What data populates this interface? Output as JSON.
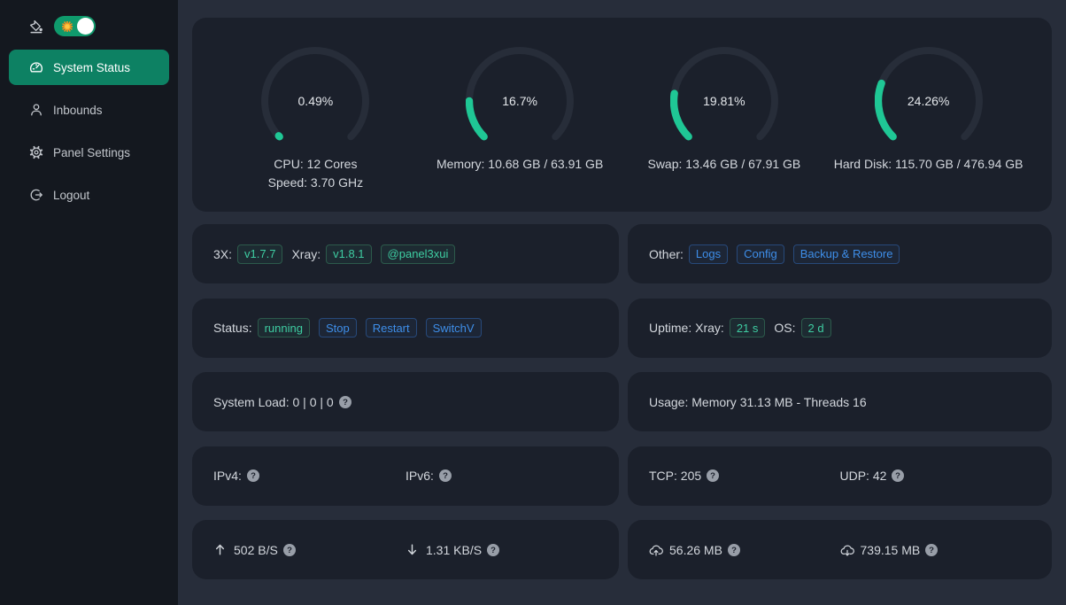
{
  "sidebar": {
    "theme_icon": "bg-colors-icon",
    "theme_switch": {
      "checked": true,
      "icon": "sun-icon"
    },
    "items": [
      {
        "id": "system-status",
        "label": "System Status",
        "icon": "dashboard-icon",
        "active": true
      },
      {
        "id": "inbounds",
        "label": "Inbounds",
        "icon": "user-icon",
        "active": false
      },
      {
        "id": "panel-settings",
        "label": "Panel Settings",
        "icon": "gear-icon",
        "active": false
      },
      {
        "id": "logout",
        "label": "Logout",
        "icon": "logout-icon",
        "active": false
      }
    ]
  },
  "colors": {
    "accent_green": "#0d8163",
    "gauge_green": "#1fc795",
    "tag_green": "#3ecda2",
    "tag_blue": "#3e8ee9"
  },
  "gauges": [
    {
      "id": "cpu",
      "percent": 0.49,
      "display": "0.49%",
      "lines": [
        "CPU: 12 Cores",
        "Speed: 3.70 GHz"
      ]
    },
    {
      "id": "memory",
      "percent": 16.7,
      "display": "16.7%",
      "lines": [
        "Memory: 10.68 GB / 63.91 GB"
      ]
    },
    {
      "id": "swap",
      "percent": 19.81,
      "display": "19.81%",
      "lines": [
        "Swap: 13.46 GB / 67.91 GB"
      ]
    },
    {
      "id": "hard-disk",
      "percent": 24.26,
      "display": "24.26%",
      "lines": [
        "Hard Disk: 115.70 GB / 476.94 GB"
      ]
    }
  ],
  "rows": [
    {
      "cards": [
        {
          "name": "panel-version-card",
          "columns": [
            {
              "segments": [
                {
                  "type": "text",
                  "text": "3X:",
                  "name": "panel-version-label",
                  "click": false
                },
                {
                  "type": "tag",
                  "variant": "green",
                  "text": "v1.7.7",
                  "name": "panel-version-tag",
                  "click": true
                },
                {
                  "type": "text",
                  "text": "Xray:",
                  "name": "xray-version-label",
                  "click": false
                },
                {
                  "type": "tag",
                  "variant": "green",
                  "text": "v1.8.1",
                  "name": "xray-version-tag",
                  "click": true
                },
                {
                  "type": "tag",
                  "variant": "green",
                  "text": "@panel3xui",
                  "name": "telegram-tag",
                  "click": true
                }
              ]
            }
          ]
        },
        {
          "name": "other-actions-card",
          "columns": [
            {
              "segments": [
                {
                  "type": "text",
                  "text": "Other:",
                  "name": "other-label",
                  "click": false
                },
                {
                  "type": "tag",
                  "variant": "blue",
                  "text": "Logs",
                  "name": "logs-button",
                  "click": true
                },
                {
                  "type": "tag",
                  "variant": "blue",
                  "text": "Config",
                  "name": "config-button",
                  "click": true
                },
                {
                  "type": "tag",
                  "variant": "blue",
                  "text": "Backup & Restore",
                  "name": "backup-restore-button",
                  "click": true
                }
              ]
            }
          ]
        }
      ]
    },
    {
      "cards": [
        {
          "name": "xray-status-card",
          "columns": [
            {
              "segments": [
                {
                  "type": "text",
                  "text": "Status:",
                  "name": "status-label",
                  "click": false
                },
                {
                  "type": "tag",
                  "variant": "green",
                  "text": "running",
                  "name": "status-running-tag",
                  "click": false
                },
                {
                  "type": "tag",
                  "variant": "blue",
                  "text": "Stop",
                  "name": "stop-button",
                  "click": true
                },
                {
                  "type": "tag",
                  "variant": "blue",
                  "text": "Restart",
                  "name": "restart-button",
                  "click": true
                },
                {
                  "type": "tag",
                  "variant": "blue",
                  "text": "SwitchV",
                  "name": "switch-version-button",
                  "click": true
                }
              ]
            }
          ]
        },
        {
          "name": "uptime-card",
          "columns": [
            {
              "segments": [
                {
                  "type": "text",
                  "text": "Uptime: Xray:",
                  "name": "uptime-xray-label",
                  "click": false
                },
                {
                  "type": "tag",
                  "variant": "green",
                  "text": "21 s",
                  "name": "xray-uptime-tag",
                  "click": false
                },
                {
                  "type": "text",
                  "text": "OS:",
                  "name": "os-uptime-label",
                  "click": false
                },
                {
                  "type": "tag",
                  "variant": "green",
                  "text": "2 d",
                  "name": "os-uptime-tag",
                  "click": false
                }
              ]
            }
          ]
        }
      ]
    },
    {
      "cards": [
        {
          "name": "system-load-card",
          "columns": [
            {
              "segments": [
                {
                  "type": "text",
                  "text": "System Load: 0 | 0 | 0",
                  "name": "system-load-value",
                  "click": false
                },
                {
                  "type": "help",
                  "name": "help-icon",
                  "click": true
                }
              ]
            }
          ]
        },
        {
          "name": "usage-card",
          "columns": [
            {
              "segments": [
                {
                  "type": "text",
                  "text": "Usage: Memory 31.13 MB - Threads 16",
                  "name": "usage-value",
                  "click": false
                }
              ]
            }
          ]
        }
      ]
    },
    {
      "cards": [
        {
          "name": "ip-card",
          "columns": [
            {
              "segments": [
                {
                  "type": "text",
                  "text": "IPv4:",
                  "name": "ipv4-label",
                  "click": false
                },
                {
                  "type": "help",
                  "name": "help-icon",
                  "click": true
                }
              ]
            },
            {
              "segments": [
                {
                  "type": "text",
                  "text": "IPv6:",
                  "name": "ipv6-label",
                  "click": false
                },
                {
                  "type": "help",
                  "name": "help-icon",
                  "click": true
                }
              ]
            }
          ]
        },
        {
          "name": "connections-card",
          "columns": [
            {
              "segments": [
                {
                  "type": "text",
                  "text": "TCP: 205",
                  "name": "tcp-count",
                  "click": false
                },
                {
                  "type": "help",
                  "name": "help-icon",
                  "click": true
                }
              ]
            },
            {
              "segments": [
                {
                  "type": "text",
                  "text": "UDP: 42",
                  "name": "udp-count",
                  "click": false
                },
                {
                  "type": "help",
                  "name": "help-icon",
                  "click": true
                }
              ]
            }
          ]
        }
      ]
    },
    {
      "cards": [
        {
          "name": "network-speed-card",
          "columns": [
            {
              "segments": [
                {
                  "type": "icon",
                  "icon": "arrow-up-icon",
                  "name": "arrow-up-icon",
                  "click": false
                },
                {
                  "type": "text",
                  "text": "502 B/S",
                  "name": "upload-speed-value",
                  "click": false
                },
                {
                  "type": "help",
                  "name": "help-icon",
                  "click": true
                }
              ]
            },
            {
              "segments": [
                {
                  "type": "icon",
                  "icon": "arrow-down-icon",
                  "name": "arrow-down-icon",
                  "click": false
                },
                {
                  "type": "text",
                  "text": "1.31 KB/S",
                  "name": "download-speed-value",
                  "click": false
                },
                {
                  "type": "help",
                  "name": "help-icon",
                  "click": true
                }
              ]
            }
          ]
        },
        {
          "name": "traffic-total-card",
          "columns": [
            {
              "segments": [
                {
                  "type": "icon",
                  "icon": "cloud-upload-icon",
                  "name": "cloud-upload-icon",
                  "click": false
                },
                {
                  "type": "text",
                  "text": "56.26 MB",
                  "name": "upload-total-value",
                  "click": false
                },
                {
                  "type": "help",
                  "name": "help-icon",
                  "click": true
                }
              ]
            },
            {
              "segments": [
                {
                  "type": "icon",
                  "icon": "cloud-download-icon",
                  "name": "cloud-download-icon",
                  "click": false
                },
                {
                  "type": "text",
                  "text": "739.15 MB",
                  "name": "download-total-value",
                  "click": false
                },
                {
                  "type": "help",
                  "name": "help-icon",
                  "click": true
                }
              ]
            }
          ]
        }
      ]
    }
  ]
}
